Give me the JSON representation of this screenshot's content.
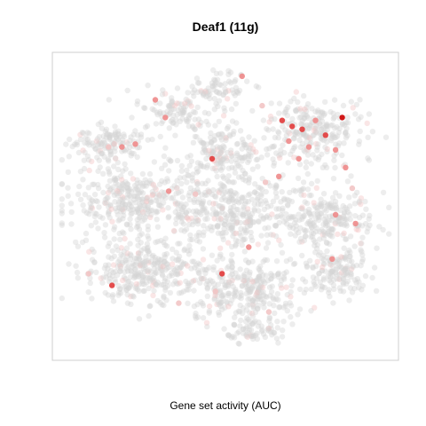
{
  "chart_data": {
    "type": "scatter",
    "title": "Deaf1 (11g)",
    "xlabel": "Gene set activity (AUC)",
    "ylabel": "",
    "xlim": [
      0,
      1
    ],
    "ylim": [
      0,
      1
    ],
    "grid": false,
    "colors": {
      "background_point": "#d3d3d3",
      "low_activity": "#f2c4c4",
      "mid_activity": "#ee8a8a",
      "high_activity": "#e23b3b",
      "max_activity": "#cc0000",
      "frame": "#cfcfcf"
    },
    "point_alpha_background": 0.42,
    "point_alpha_highlight": 0.9,
    "clusters": [
      {
        "id": "top-small",
        "cx": 0.48,
        "cy": 0.9,
        "rx": 0.09,
        "ry": 0.06,
        "n": 70
      },
      {
        "id": "top-left",
        "cx": 0.36,
        "cy": 0.82,
        "rx": 0.12,
        "ry": 0.07,
        "n": 110
      },
      {
        "id": "left-arm",
        "cx": 0.14,
        "cy": 0.71,
        "rx": 0.11,
        "ry": 0.07,
        "n": 130
      },
      {
        "id": "upper-mid",
        "cx": 0.48,
        "cy": 0.68,
        "rx": 0.14,
        "ry": 0.09,
        "n": 170
      },
      {
        "id": "upper-right",
        "cx": 0.76,
        "cy": 0.75,
        "rx": 0.16,
        "ry": 0.12,
        "n": 260
      },
      {
        "id": "mid-left",
        "cx": 0.22,
        "cy": 0.52,
        "rx": 0.18,
        "ry": 0.12,
        "n": 330
      },
      {
        "id": "center",
        "cx": 0.52,
        "cy": 0.48,
        "rx": 0.18,
        "ry": 0.13,
        "n": 360
      },
      {
        "id": "right",
        "cx": 0.8,
        "cy": 0.45,
        "rx": 0.14,
        "ry": 0.11,
        "n": 230
      },
      {
        "id": "lower-left",
        "cx": 0.26,
        "cy": 0.28,
        "rx": 0.18,
        "ry": 0.11,
        "n": 330
      },
      {
        "id": "lower-mid",
        "cx": 0.56,
        "cy": 0.22,
        "rx": 0.17,
        "ry": 0.11,
        "n": 300
      },
      {
        "id": "lower-right",
        "cx": 0.84,
        "cy": 0.28,
        "rx": 0.1,
        "ry": 0.08,
        "n": 140
      },
      {
        "id": "bottom-tail",
        "cx": 0.58,
        "cy": 0.08,
        "rx": 0.08,
        "ry": 0.05,
        "n": 70
      }
    ],
    "highlight_points": [
      {
        "x": 0.85,
        "y": 0.8,
        "v": 1.0
      },
      {
        "x": 0.67,
        "y": 0.79,
        "v": 0.75
      },
      {
        "x": 0.7,
        "y": 0.77,
        "v": 0.6
      },
      {
        "x": 0.73,
        "y": 0.76,
        "v": 0.65
      },
      {
        "x": 0.77,
        "y": 0.79,
        "v": 0.55
      },
      {
        "x": 0.8,
        "y": 0.74,
        "v": 0.6
      },
      {
        "x": 0.75,
        "y": 0.7,
        "v": 0.5
      },
      {
        "x": 0.69,
        "y": 0.72,
        "v": 0.45
      },
      {
        "x": 0.83,
        "y": 0.69,
        "v": 0.5
      },
      {
        "x": 0.72,
        "y": 0.66,
        "v": 0.55
      },
      {
        "x": 0.86,
        "y": 0.63,
        "v": 0.45
      },
      {
        "x": 0.66,
        "y": 0.6,
        "v": 0.4
      },
      {
        "x": 0.61,
        "y": 0.84,
        "v": 0.35
      },
      {
        "x": 0.55,
        "y": 0.94,
        "v": 0.45
      },
      {
        "x": 0.32,
        "y": 0.8,
        "v": 0.55
      },
      {
        "x": 0.29,
        "y": 0.86,
        "v": 0.4
      },
      {
        "x": 0.23,
        "y": 0.71,
        "v": 0.55
      },
      {
        "x": 0.19,
        "y": 0.7,
        "v": 0.45
      },
      {
        "x": 0.15,
        "y": 0.7,
        "v": 0.35
      },
      {
        "x": 0.46,
        "y": 0.66,
        "v": 0.6
      },
      {
        "x": 0.33,
        "y": 0.55,
        "v": 0.45
      },
      {
        "x": 0.62,
        "y": 0.58,
        "v": 0.35
      },
      {
        "x": 0.83,
        "y": 0.47,
        "v": 0.55
      },
      {
        "x": 0.89,
        "y": 0.44,
        "v": 0.4
      },
      {
        "x": 0.41,
        "y": 0.54,
        "v": 0.3
      },
      {
        "x": 0.57,
        "y": 0.36,
        "v": 0.4
      },
      {
        "x": 0.16,
        "y": 0.23,
        "v": 0.75
      },
      {
        "x": 0.49,
        "y": 0.27,
        "v": 0.6
      },
      {
        "x": 0.47,
        "y": 0.21,
        "v": 0.35
      },
      {
        "x": 0.82,
        "y": 0.32,
        "v": 0.55
      },
      {
        "x": 0.36,
        "y": 0.17,
        "v": 0.3
      },
      {
        "x": 0.63,
        "y": 0.14,
        "v": 0.3
      },
      {
        "x": 0.09,
        "y": 0.27,
        "v": 0.35
      },
      {
        "x": 0.88,
        "y": 0.56,
        "v": 0.35
      }
    ]
  }
}
